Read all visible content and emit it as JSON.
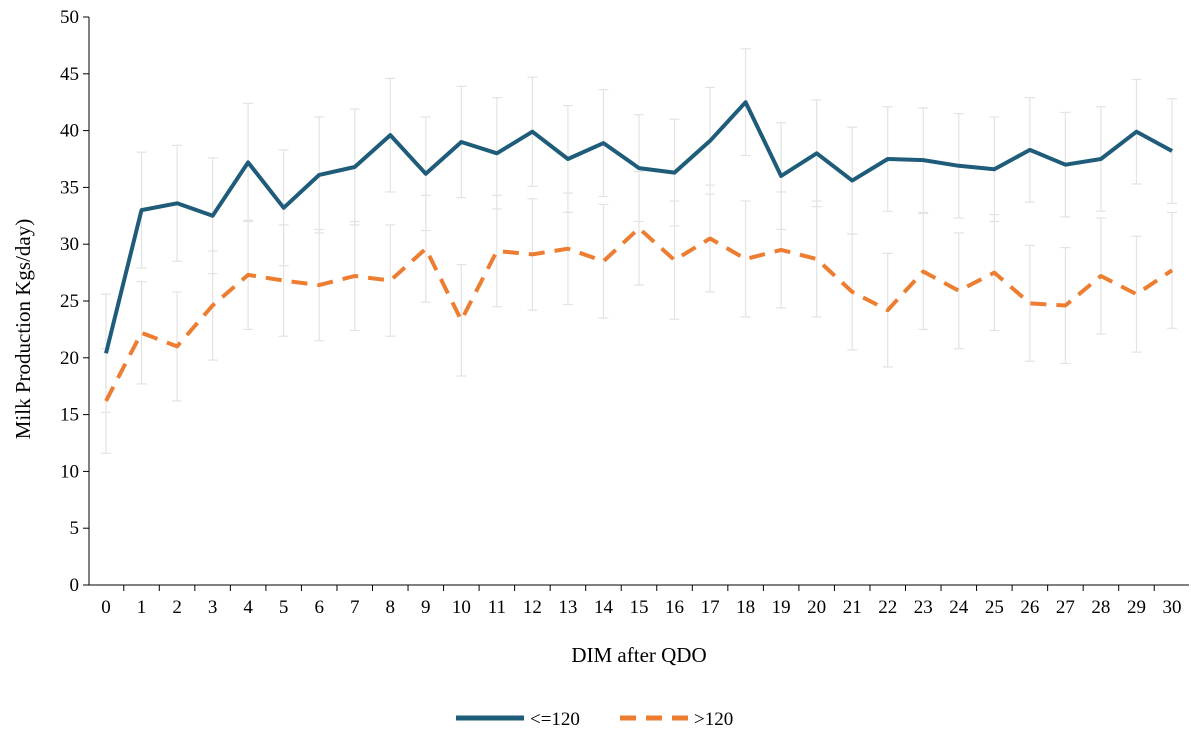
{
  "chart_data": {
    "type": "line",
    "title": "",
    "xlabel": "DIM after QDO",
    "ylabel": "Milk Production Kgs/day)",
    "x": [
      0,
      1,
      2,
      3,
      4,
      5,
      6,
      7,
      8,
      9,
      10,
      11,
      12,
      13,
      14,
      15,
      16,
      17,
      18,
      19,
      20,
      21,
      22,
      23,
      24,
      25,
      26,
      27,
      28,
      29,
      30
    ],
    "ylim": [
      0,
      50
    ],
    "yticks": [
      0,
      5,
      10,
      15,
      20,
      25,
      30,
      35,
      40,
      45,
      50
    ],
    "grid": false,
    "legend_position": "bottom-center",
    "series": [
      {
        "name": "<=120",
        "color": "#1f5c7a",
        "style": "solid",
        "values": [
          20.4,
          33.0,
          33.6,
          32.5,
          37.2,
          33.2,
          36.1,
          36.8,
          39.6,
          36.2,
          39.0,
          38.0,
          39.9,
          37.5,
          38.9,
          36.7,
          36.3,
          39.1,
          42.5,
          36.0,
          38.0,
          35.6,
          37.5,
          37.4,
          36.9,
          36.6,
          38.3,
          37.0,
          37.5,
          39.9,
          38.2
        ],
        "error": [
          5.2,
          5.1,
          5.1,
          5.1,
          5.2,
          5.1,
          5.1,
          5.1,
          5.0,
          5.0,
          4.9,
          4.9,
          4.8,
          4.7,
          4.7,
          4.7,
          4.7,
          4.7,
          4.7,
          4.7,
          4.7,
          4.7,
          4.6,
          4.6,
          4.6,
          4.6,
          4.6,
          4.6,
          4.6,
          4.6,
          4.6
        ]
      },
      {
        "name": ">120",
        "color": "#ed7d31",
        "style": "dashed",
        "values": [
          16.2,
          22.2,
          21.0,
          24.6,
          27.3,
          26.8,
          26.4,
          27.2,
          26.8,
          29.6,
          23.3,
          29.4,
          29.1,
          29.6,
          28.5,
          31.4,
          28.6,
          30.5,
          28.7,
          29.5,
          28.7,
          25.8,
          24.2,
          27.6,
          25.9,
          27.5,
          24.8,
          24.6,
          27.2,
          25.6,
          27.7
        ],
        "error": [
          4.6,
          4.5,
          4.8,
          4.8,
          4.8,
          4.9,
          4.9,
          4.8,
          4.9,
          4.7,
          4.9,
          4.9,
          4.9,
          4.9,
          5.0,
          5.0,
          5.2,
          4.7,
          5.1,
          5.1,
          5.1,
          5.1,
          5.0,
          5.1,
          5.1,
          5.1,
          5.1,
          5.1,
          5.1,
          5.1,
          5.1
        ]
      }
    ]
  },
  "colors": {
    "axis": "#000000",
    "error_bars": "#e3e3e3"
  }
}
